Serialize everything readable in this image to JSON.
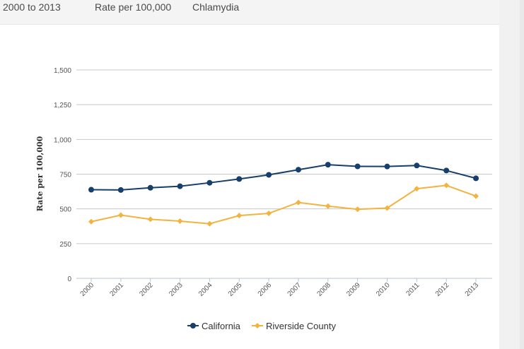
{
  "filters": [
    "2000 to 2013",
    "Rate per 100,000",
    "Chlamydia"
  ],
  "chart_data": {
    "type": "line",
    "categories": [
      "2000",
      "2001",
      "2002",
      "2003",
      "2004",
      "2005",
      "2006",
      "2007",
      "2008",
      "2009",
      "2010",
      "2011",
      "2012",
      "2013"
    ],
    "series": [
      {
        "name": "California",
        "color": "#163f6b",
        "marker": "circle",
        "values": [
          638,
          636,
          652,
          663,
          688,
          715,
          745,
          782,
          818,
          806,
          805,
          812,
          776,
          720
        ]
      },
      {
        "name": "Riverside County",
        "color": "#f2b33f",
        "marker": "diamond",
        "values": [
          408,
          455,
          425,
          412,
          393,
          452,
          468,
          546,
          520,
          497,
          506,
          645,
          669,
          592
        ]
      }
    ],
    "ylabel": "Rate per 100,000",
    "xlabel": "",
    "ylim": [
      0,
      1500
    ],
    "yticks": [
      0,
      250,
      500,
      750,
      1000,
      1250,
      1500
    ],
    "ytick_labels": [
      "0",
      "250",
      "500",
      "750",
      "1,000",
      "1,250",
      "1,500"
    ],
    "grid": true,
    "legend_position": "bottom-center"
  }
}
